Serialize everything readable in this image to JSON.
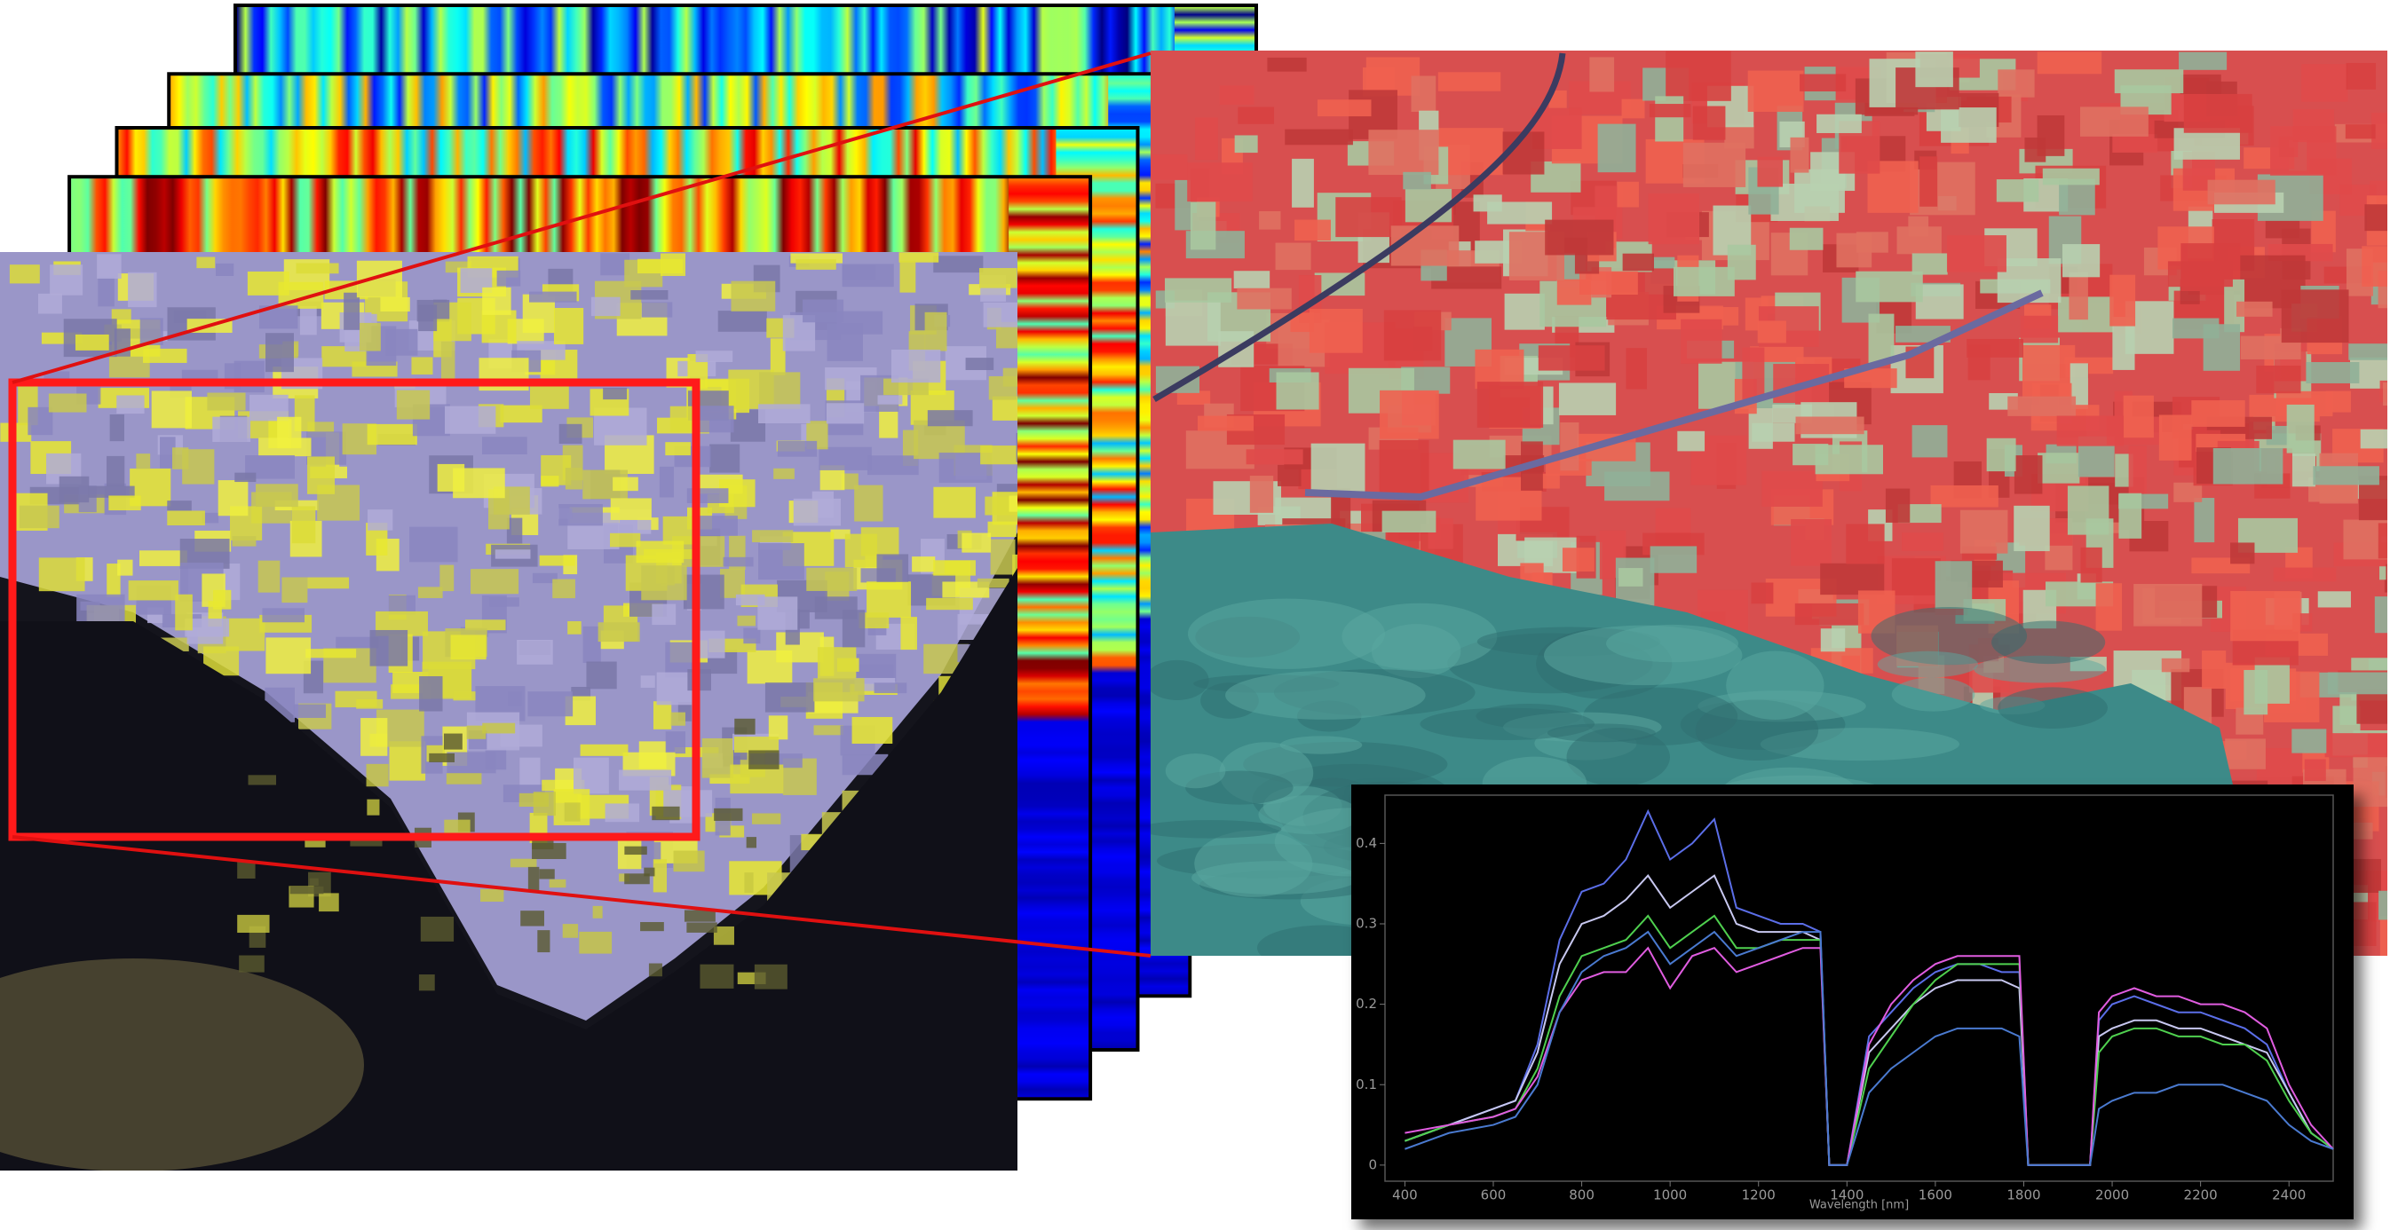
{
  "chart_data": {
    "type": "line",
    "x_label": "Wavelength [nm]",
    "x": [
      400,
      450,
      500,
      550,
      600,
      650,
      700,
      750,
      800,
      850,
      900,
      950,
      1000,
      1050,
      1100,
      1150,
      1200,
      1250,
      1300,
      1340,
      1360,
      1400,
      1450,
      1500,
      1550,
      1600,
      1650,
      1700,
      1750,
      1790,
      1810,
      1950,
      1970,
      2000,
      2050,
      2100,
      2150,
      2200,
      2250,
      2300,
      2350,
      2400,
      2450,
      2500
    ],
    "series": [
      {
        "color": "#5b6ee8",
        "values": [
          0.03,
          0.04,
          0.05,
          0.06,
          0.07,
          0.08,
          0.15,
          0.28,
          0.34,
          0.35,
          0.38,
          0.44,
          0.38,
          0.4,
          0.43,
          0.32,
          0.31,
          0.3,
          0.3,
          0.29,
          0,
          0,
          0.16,
          0.19,
          0.22,
          0.24,
          0.25,
          0.25,
          0.24,
          0.24,
          0,
          0,
          0.18,
          0.2,
          0.21,
          0.2,
          0.19,
          0.19,
          0.18,
          0.17,
          0.15,
          0.09,
          0.04,
          0.02
        ]
      },
      {
        "color": "#c8c8f0",
        "values": [
          0.03,
          0.04,
          0.05,
          0.06,
          0.07,
          0.08,
          0.14,
          0.25,
          0.3,
          0.31,
          0.33,
          0.36,
          0.32,
          0.34,
          0.36,
          0.3,
          0.29,
          0.29,
          0.29,
          0.28,
          0,
          0,
          0.14,
          0.17,
          0.2,
          0.22,
          0.23,
          0.23,
          0.23,
          0.22,
          0,
          0,
          0.16,
          0.17,
          0.18,
          0.18,
          0.17,
          0.17,
          0.16,
          0.15,
          0.14,
          0.09,
          0.04,
          0.02
        ]
      },
      {
        "color": "#4fd04f",
        "values": [
          0.03,
          0.04,
          0.05,
          0.055,
          0.06,
          0.07,
          0.12,
          0.21,
          0.26,
          0.27,
          0.28,
          0.31,
          0.27,
          0.29,
          0.31,
          0.27,
          0.27,
          0.28,
          0.28,
          0.28,
          0,
          0,
          0.12,
          0.16,
          0.2,
          0.23,
          0.25,
          0.25,
          0.25,
          0.25,
          0,
          0,
          0.14,
          0.16,
          0.17,
          0.17,
          0.16,
          0.16,
          0.15,
          0.15,
          0.13,
          0.08,
          0.04,
          0.02
        ]
      },
      {
        "color": "#e05ce0",
        "values": [
          0.04,
          0.045,
          0.05,
          0.055,
          0.06,
          0.07,
          0.11,
          0.19,
          0.23,
          0.24,
          0.24,
          0.27,
          0.22,
          0.26,
          0.27,
          0.24,
          0.25,
          0.26,
          0.27,
          0.27,
          0,
          0,
          0.15,
          0.2,
          0.23,
          0.25,
          0.26,
          0.26,
          0.26,
          0.26,
          0,
          0,
          0.19,
          0.21,
          0.22,
          0.21,
          0.21,
          0.2,
          0.2,
          0.19,
          0.17,
          0.1,
          0.05,
          0.02
        ]
      },
      {
        "color": "#4a7ad0",
        "values": [
          0.02,
          0.03,
          0.04,
          0.045,
          0.05,
          0.06,
          0.1,
          0.19,
          0.24,
          0.26,
          0.27,
          0.29,
          0.25,
          0.27,
          0.29,
          0.26,
          0.27,
          0.28,
          0.29,
          0.29,
          0,
          0,
          0.09,
          0.12,
          0.14,
          0.16,
          0.17,
          0.17,
          0.17,
          0.16,
          0,
          0,
          0.07,
          0.08,
          0.09,
          0.09,
          0.1,
          0.1,
          0.1,
          0.09,
          0.08,
          0.05,
          0.03,
          0.02
        ]
      }
    ],
    "xlim": [
      355,
      2500
    ],
    "ylim": [
      -0.02,
      0.46
    ],
    "xticks": [
      400,
      600,
      800,
      1000,
      1200,
      1400,
      1600,
      1800,
      2000,
      2200,
      2400
    ],
    "yticks": [
      0,
      0.1,
      0.2,
      0.3,
      0.4
    ]
  }
}
